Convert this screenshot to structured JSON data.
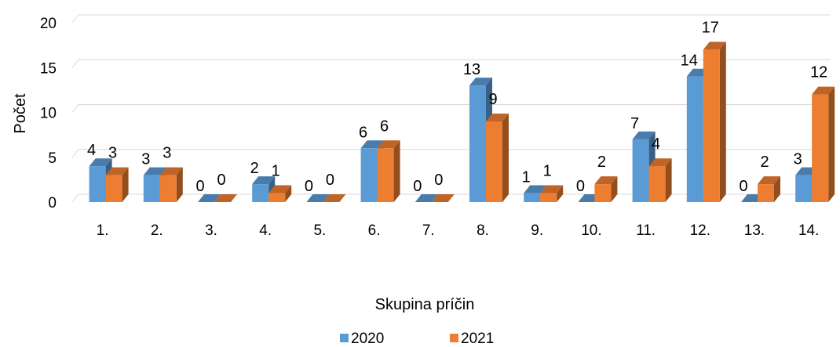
{
  "chart_data": {
    "type": "bar",
    "style": "3d-clustered-column",
    "categories": [
      "1.",
      "2.",
      "3.",
      "4.",
      "5.",
      "6.",
      "7.",
      "8.",
      "9.",
      "10.",
      "11.",
      "12.",
      "13.",
      "14."
    ],
    "series": [
      {
        "name": "2020",
        "color": "#5B9BD5",
        "values": [
          4,
          3,
          0,
          2,
          0,
          6,
          0,
          13,
          1,
          0,
          7,
          14,
          0,
          3
        ]
      },
      {
        "name": "2021",
        "color": "#ED7D31",
        "values": [
          3,
          3,
          0,
          1,
          0,
          6,
          0,
          9,
          1,
          2,
          4,
          17,
          2,
          12
        ]
      }
    ],
    "xlabel": "Skupina príčin",
    "ylabel": "Počet",
    "ylim": [
      0,
      20
    ],
    "yticks": [
      0,
      5,
      10,
      15,
      20
    ],
    "grid": true,
    "legend_position": "bottom"
  }
}
